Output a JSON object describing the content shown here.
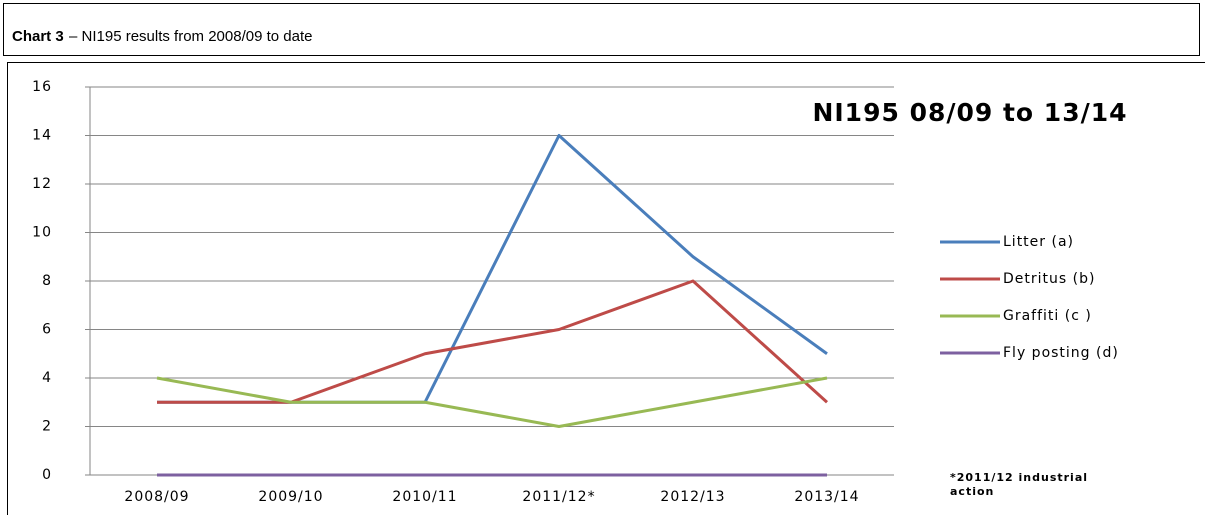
{
  "header": {
    "label": "Chart 3",
    "text": "– NI195 results from 2008/09 to date"
  },
  "chart_data": {
    "type": "line",
    "title": "NI195 08/09 to 13/14",
    "categories": [
      "2008/09",
      "2009/10",
      "2010/11",
      "2011/12*",
      "2012/13",
      "2013/14"
    ],
    "series": [
      {
        "name": "Litter (a)",
        "color": "#4a7ebb",
        "values": [
          3,
          3,
          3,
          14,
          9,
          5
        ]
      },
      {
        "name": "Detritus (b)",
        "color": "#be4b48",
        "values": [
          3,
          3,
          5,
          6,
          8,
          3
        ]
      },
      {
        "name": "Graffiti (c )",
        "color": "#98b954",
        "values": [
          4,
          3,
          3,
          2,
          3,
          4
        ]
      },
      {
        "name": "Fly posting (d)",
        "color": "#7d60a0",
        "values": [
          0,
          0,
          0,
          0,
          0,
          0
        ]
      }
    ],
    "ylim": [
      0,
      16
    ],
    "yticks": [
      0,
      2,
      4,
      6,
      8,
      10,
      12,
      14,
      16
    ],
    "grid": true,
    "legend": "right",
    "annotation": [
      "*2011/12 industrial",
      "action"
    ]
  }
}
